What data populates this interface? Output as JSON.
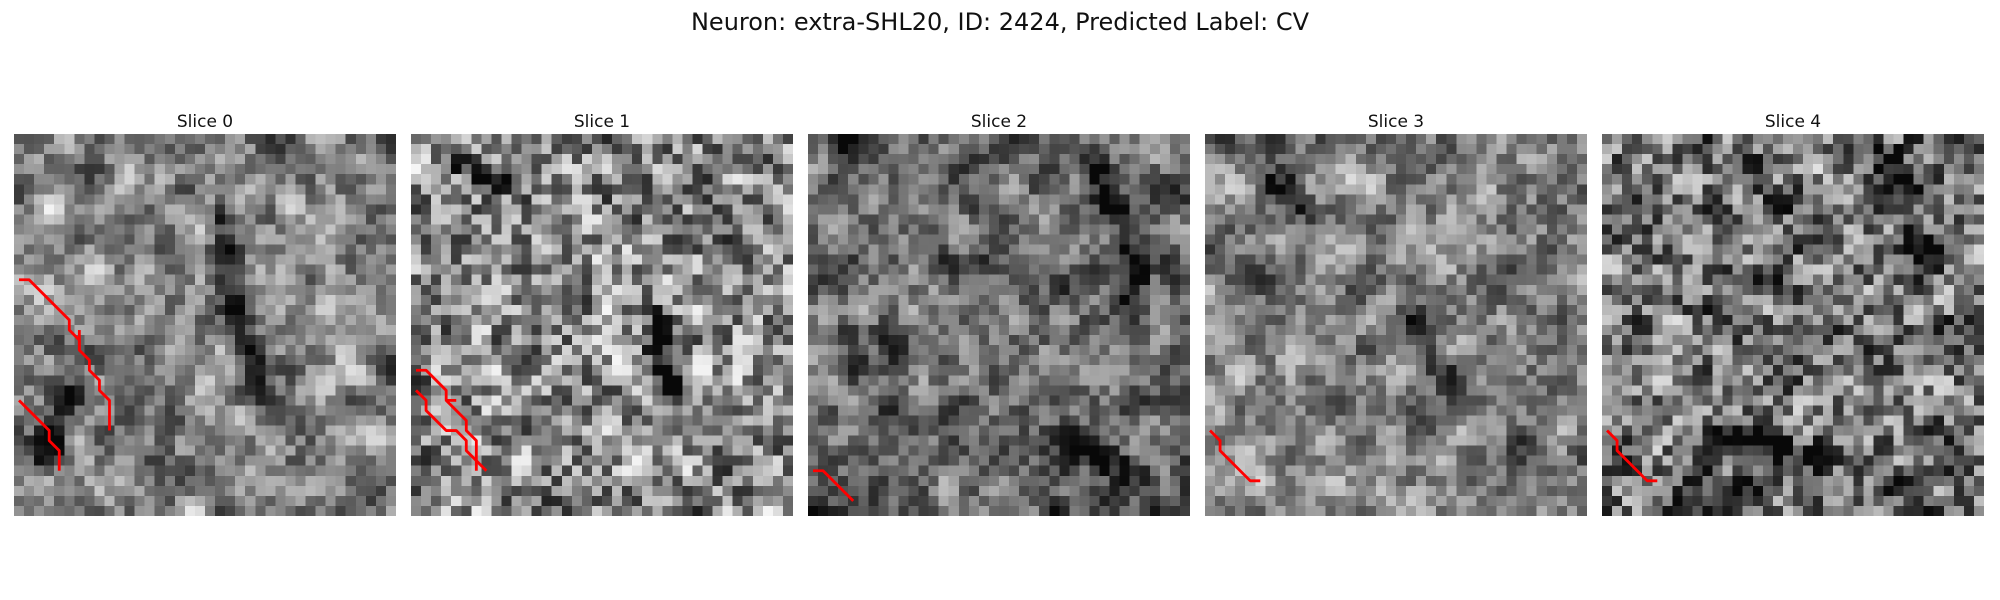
{
  "figure": {
    "title": "Neuron: extra-SHL20, ID: 2424, Predicted Label: CV"
  },
  "panels": [
    {
      "title": "Slice 0",
      "seed": 11,
      "darkness": 0.0,
      "smooth": 2,
      "overlay": [
        [
          [
            0.5,
            14.5
          ],
          [
            1.5,
            14.5
          ],
          [
            5.5,
            18.5
          ],
          [
            5.5,
            19.5
          ],
          [
            6.5,
            20.5
          ],
          [
            6.5,
            21.5
          ],
          [
            7.5,
            22.5
          ],
          [
            7.5,
            23.5
          ],
          [
            8.5,
            24.5
          ],
          [
            8.5,
            25.5
          ],
          [
            9.5,
            26.5
          ],
          [
            9.5,
            29.5
          ]
        ],
        [
          [
            0.5,
            26.5
          ],
          [
            3.5,
            29.5
          ],
          [
            3.5,
            30.5
          ],
          [
            4.5,
            31.5
          ],
          [
            4.5,
            33.5
          ]
        ],
        [
          [
            6.5,
            19.5
          ],
          [
            6.5,
            21.5
          ]
        ]
      ],
      "feature_paths": [
        [
          [
            20,
            8
          ],
          [
            22,
            20
          ],
          [
            24,
            26
          ]
        ],
        [
          [
            6,
            25
          ],
          [
            2,
            32
          ]
        ]
      ]
    },
    {
      "title": "Slice 1",
      "seed": 23,
      "darkness": -0.05,
      "smooth": 1,
      "overlay": [
        [
          [
            0.5,
            23.5
          ],
          [
            1.5,
            23.5
          ],
          [
            3.5,
            25.5
          ],
          [
            3.5,
            26.5
          ],
          [
            5.5,
            28.5
          ],
          [
            5.5,
            29.5
          ],
          [
            6.5,
            30.5
          ],
          [
            6.5,
            33.5
          ]
        ],
        [
          [
            0.5,
            25.5
          ],
          [
            1.5,
            26.5
          ],
          [
            1.5,
            27.5
          ],
          [
            3.5,
            29.5
          ],
          [
            4.5,
            29.5
          ],
          [
            5.5,
            30.5
          ],
          [
            5.5,
            31.5
          ],
          [
            7.5,
            33.5
          ]
        ],
        [
          [
            3.5,
            26.5
          ],
          [
            4.5,
            26.5
          ]
        ]
      ],
      "feature_paths": [
        [
          [
            4,
            2
          ],
          [
            8,
            4
          ]
        ],
        [
          [
            24,
            18
          ],
          [
            26,
            28
          ]
        ]
      ]
    },
    {
      "title": "Slice 2",
      "seed": 37,
      "darkness": 0.12,
      "smooth": 2,
      "overlay": [
        [
          [
            0.5,
            33.5
          ],
          [
            1.5,
            33.5
          ],
          [
            4.5,
            36.5
          ]
        ]
      ],
      "feature_paths": [
        [
          [
            27,
            2
          ],
          [
            31,
            8
          ],
          [
            32,
            16
          ]
        ],
        [
          [
            24,
            30
          ],
          [
            32,
            33
          ]
        ]
      ]
    },
    {
      "title": "Slice 3",
      "seed": 53,
      "darkness": 0.0,
      "smooth": 2,
      "overlay": [
        [
          [
            0.5,
            29.5
          ],
          [
            1.5,
            30.5
          ],
          [
            1.5,
            31.5
          ],
          [
            4.5,
            34.5
          ],
          [
            5.5,
            34.5
          ]
        ]
      ],
      "feature_paths": [
        [
          [
            6,
            4
          ],
          [
            10,
            8
          ]
        ],
        [
          [
            20,
            18
          ],
          [
            24,
            24
          ]
        ]
      ]
    },
    {
      "title": "Slice 4",
      "seed": 71,
      "darkness": 0.08,
      "smooth": 1,
      "overlay": [
        [
          [
            0.5,
            29.5
          ],
          [
            1.5,
            30.5
          ],
          [
            1.5,
            31.5
          ],
          [
            4.5,
            34.5
          ],
          [
            5.5,
            34.5
          ]
        ]
      ],
      "feature_paths": [
        [
          [
            28,
            2
          ],
          [
            32,
            12
          ]
        ],
        [
          [
            14,
            30
          ],
          [
            20,
            32
          ]
        ]
      ]
    }
  ]
}
